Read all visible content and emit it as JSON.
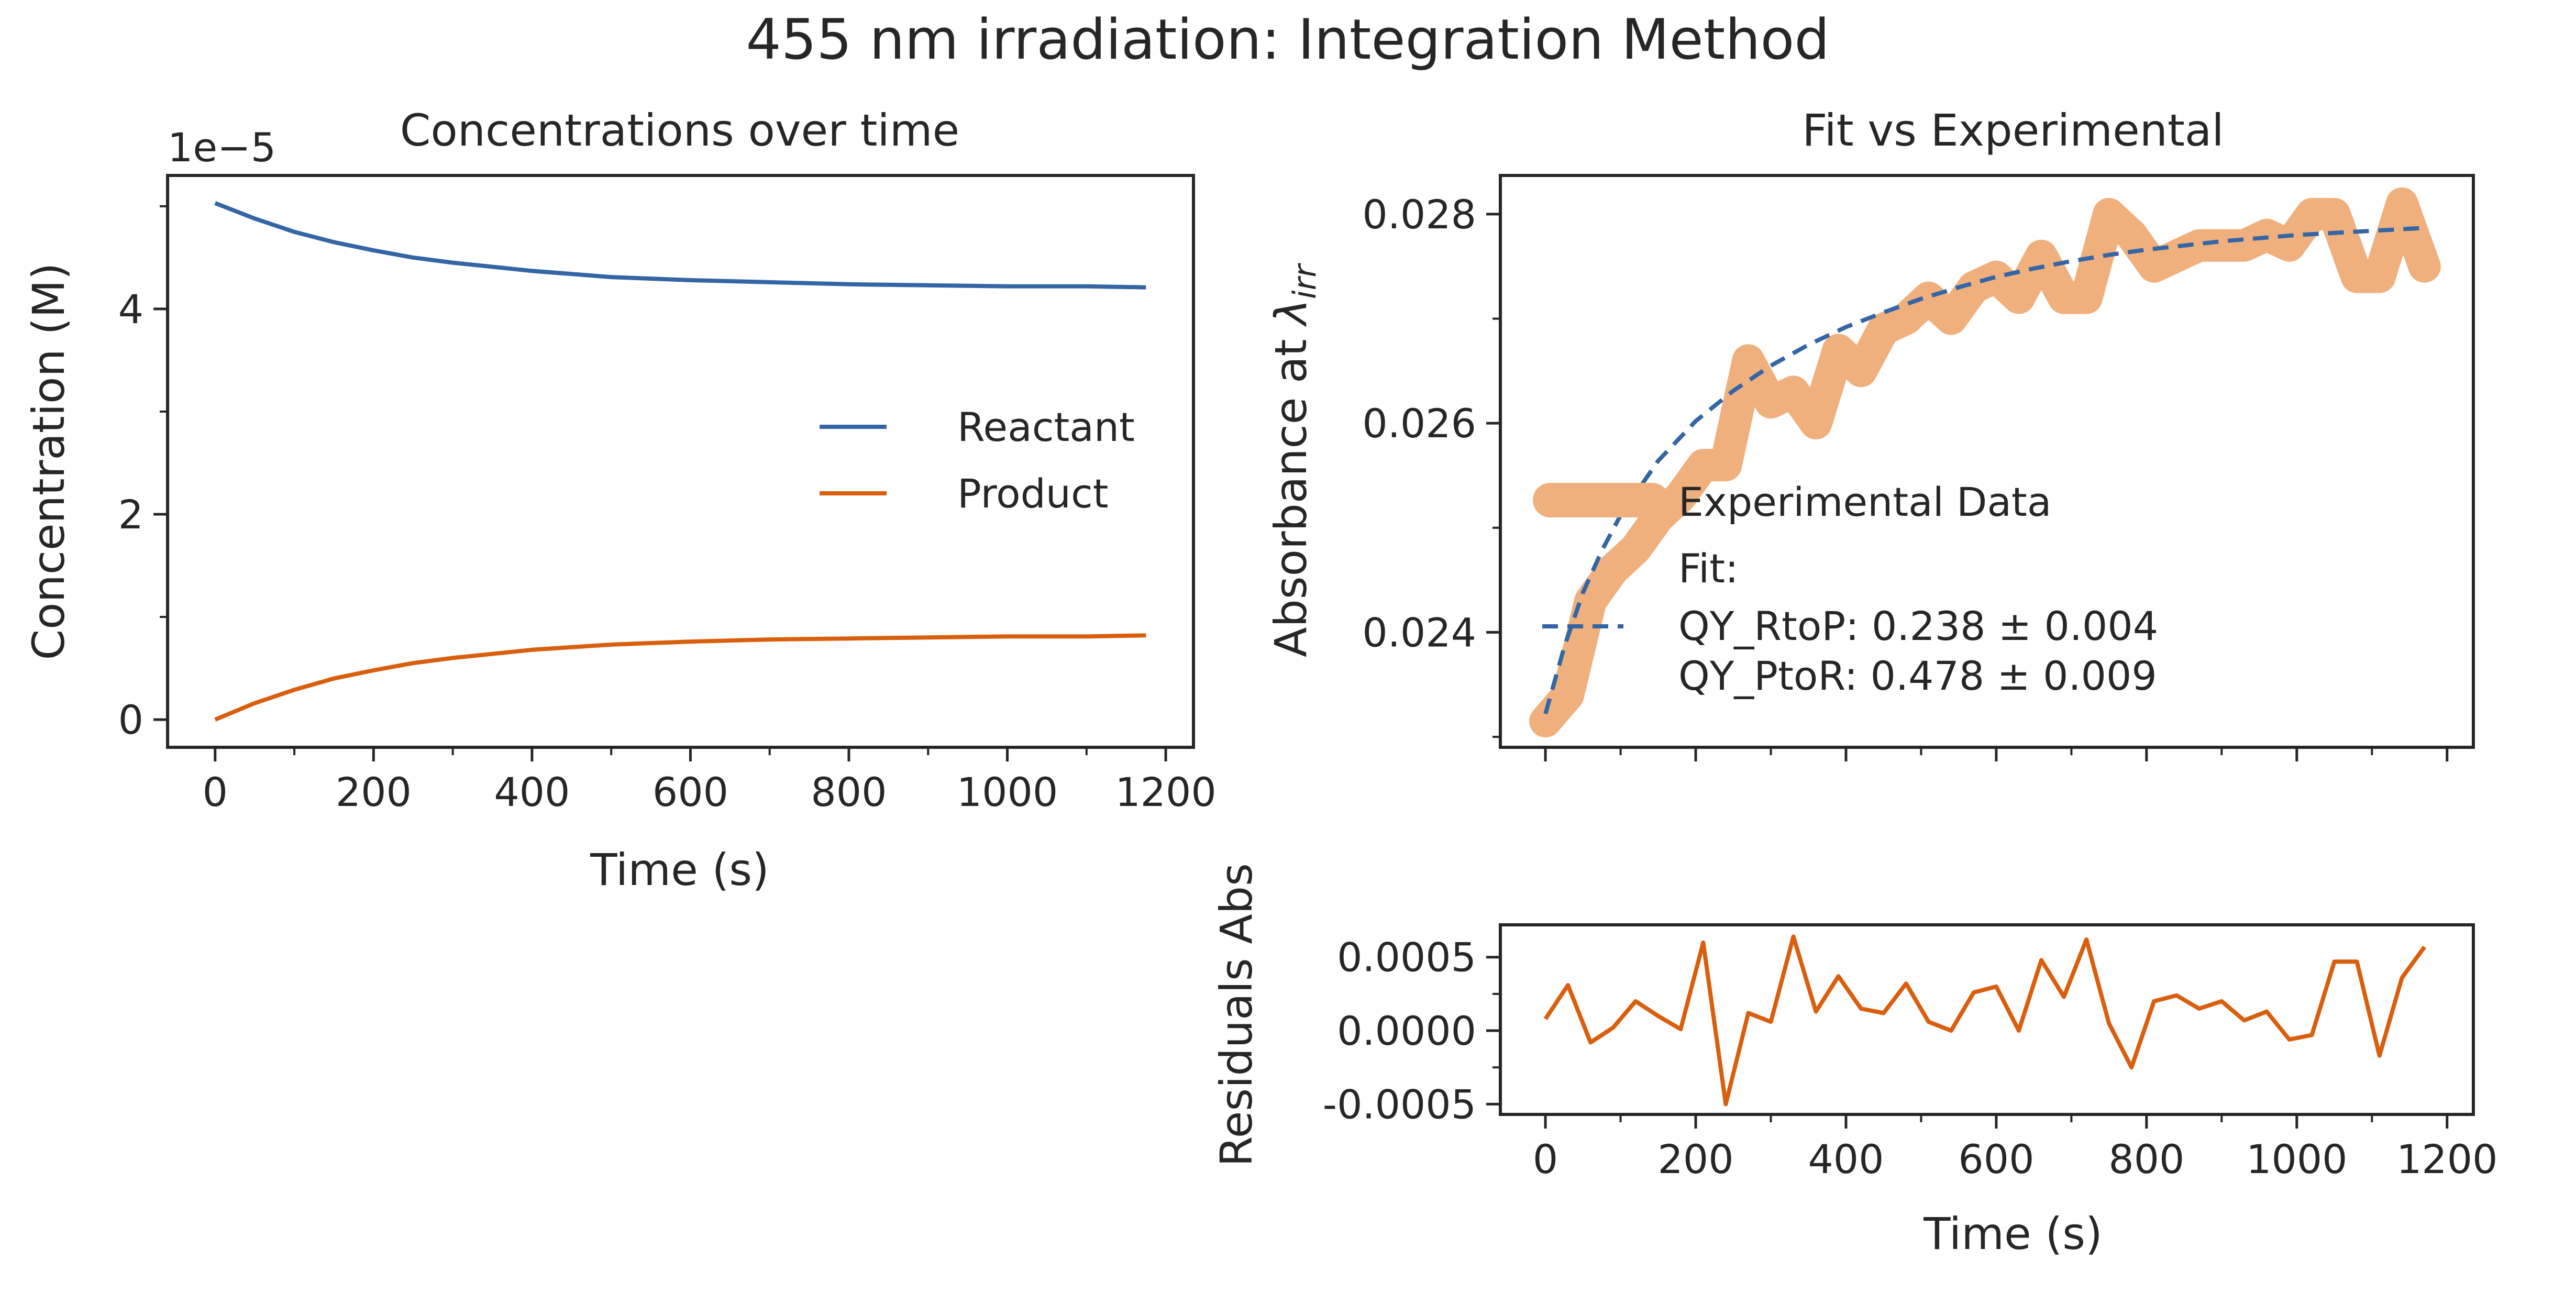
{
  "figure": {
    "suptitle": "455 nm irradiation: Integration Method"
  },
  "colors": {
    "reactant": "#3465a4",
    "product": "#d95f0e",
    "experimental": "#efb07e",
    "fit": "#3465a4",
    "residual": "#d95f0e",
    "axes": "#262626"
  },
  "chart_data": [
    {
      "type": "line",
      "title": "Concentrations over time",
      "xlabel": "Time (s)",
      "ylabel": "Concentration (M)",
      "offset_label": "1e−5",
      "xlim": [
        -60,
        1235
      ],
      "ylim": [
        -0.27,
        5.3
      ],
      "x_ticks": [
        0,
        200,
        400,
        600,
        800,
        1000,
        1200
      ],
      "x_tick_labels": [
        "0",
        "200",
        "400",
        "600",
        "800",
        "1000",
        "1200"
      ],
      "y_ticks": [
        0,
        2,
        4
      ],
      "y_tick_labels": [
        "0",
        "2",
        "4"
      ],
      "y_scale_factor": 1e-05,
      "legend_position": "center-right",
      "series": [
        {
          "name": "Reactant",
          "x": [
            0,
            50,
            100,
            150,
            200,
            250,
            300,
            400,
            500,
            600,
            700,
            800,
            900,
            1000,
            1100,
            1175
          ],
          "y": [
            5.03,
            4.88,
            4.75,
            4.65,
            4.57,
            4.5,
            4.45,
            4.37,
            4.31,
            4.28,
            4.26,
            4.24,
            4.23,
            4.22,
            4.22,
            4.21
          ]
        },
        {
          "name": "Product",
          "x": [
            0,
            50,
            100,
            150,
            200,
            250,
            300,
            400,
            500,
            600,
            700,
            800,
            900,
            1000,
            1100,
            1175
          ],
          "y": [
            0.0,
            0.16,
            0.29,
            0.4,
            0.48,
            0.55,
            0.6,
            0.68,
            0.73,
            0.76,
            0.78,
            0.79,
            0.8,
            0.81,
            0.81,
            0.82
          ]
        }
      ]
    },
    {
      "type": "line",
      "title": "Fit vs Experimental",
      "ylabel_prefix": "Absorbance at ",
      "ylabel_symbol": "λ",
      "ylabel_subscript": "irr",
      "xlim": [
        -60,
        1235
      ],
      "ylim": [
        0.0229,
        0.02837
      ],
      "y_ticks": [
        0.024,
        0.026,
        0.028
      ],
      "y_tick_labels": [
        "0.024",
        "0.026",
        "0.028"
      ],
      "legend_position": "lower-left",
      "legend": {
        "experimental_label": "Experimental Data",
        "fit_label_lines": [
          "Fit:",
          "QY_RtoP: 0.238 ± 0.004",
          "QY_PtoR: 0.478 ± 0.009"
        ]
      },
      "series": [
        {
          "name": "Experimental Data",
          "x": [
            0,
            30,
            60,
            90,
            120,
            150,
            180,
            210,
            240,
            270,
            300,
            330,
            360,
            390,
            420,
            450,
            480,
            510,
            540,
            570,
            600,
            630,
            660,
            690,
            720,
            750,
            780,
            810,
            840,
            870,
            900,
            930,
            960,
            990,
            1020,
            1050,
            1080,
            1110,
            1140,
            1170
          ],
          "y": [
            0.02315,
            0.0234,
            0.0243,
            0.0246,
            0.0248,
            0.0251,
            0.0253,
            0.0256,
            0.0256,
            0.0266,
            0.0262,
            0.0263,
            0.026,
            0.0267,
            0.0265,
            0.0269,
            0.027,
            0.0272,
            0.027,
            0.0273,
            0.0274,
            0.0272,
            0.0276,
            0.0272,
            0.0272,
            0.028,
            0.0278,
            0.0275,
            0.0276,
            0.0277,
            0.0277,
            0.0277,
            0.0278,
            0.0277,
            0.028,
            0.028,
            0.0274,
            0.0274,
            0.0281,
            0.0275
          ]
        },
        {
          "name": "Fit",
          "x": [
            0,
            25,
            50,
            75,
            100,
            150,
            200,
            250,
            300,
            350,
            400,
            450,
            500,
            550,
            600,
            650,
            700,
            750,
            800,
            850,
            900,
            950,
            1000,
            1050,
            1100,
            1150,
            1175
          ],
          "y": [
            0.02322,
            0.02386,
            0.02438,
            0.02478,
            0.02512,
            0.02564,
            0.02602,
            0.02631,
            0.02655,
            0.02675,
            0.02692,
            0.02706,
            0.02719,
            0.0273,
            0.0274,
            0.02748,
            0.02755,
            0.02761,
            0.02766,
            0.0277,
            0.02774,
            0.02777,
            0.0278,
            0.02782,
            0.02784,
            0.02786,
            0.02787
          ]
        }
      ]
    },
    {
      "type": "line",
      "title": "",
      "xlabel": "Time (s)",
      "ylabel": "Residuals Abs",
      "xlim": [
        -60,
        1235
      ],
      "ylim": [
        -0.00057,
        0.00072
      ],
      "x_ticks": [
        0,
        200,
        400,
        600,
        800,
        1000,
        1200
      ],
      "x_tick_labels": [
        "0",
        "200",
        "400",
        "600",
        "800",
        "1000",
        "1200"
      ],
      "y_ticks": [
        -0.0005,
        0.0,
        0.0005
      ],
      "y_tick_labels": [
        "-0.0005",
        "0.0000",
        "0.0005"
      ],
      "series": [
        {
          "name": "Residuals",
          "x": [
            0,
            30,
            60,
            90,
            120,
            150,
            180,
            210,
            240,
            270,
            300,
            330,
            360,
            390,
            420,
            450,
            480,
            510,
            540,
            570,
            600,
            630,
            660,
            690,
            720,
            750,
            780,
            810,
            840,
            870,
            900,
            930,
            960,
            990,
            1020,
            1050,
            1080,
            1110,
            1140,
            1170
          ],
          "y": [
            8e-05,
            0.00031,
            -8e-05,
            2e-05,
            0.0002,
            0.0001,
            1e-05,
            0.0006,
            -0.0005,
            0.00012,
            6e-05,
            0.00064,
            0.00013,
            0.00037,
            0.00015,
            0.00012,
            0.00032,
            6e-05,
            0.0,
            0.00026,
            0.0003,
            0.0,
            0.00048,
            0.00023,
            0.00062,
            5e-05,
            -0.00025,
            0.0002,
            0.00024,
            0.00015,
            0.0002,
            7e-05,
            0.00013,
            -6e-05,
            -3e-05,
            0.00047,
            0.00047,
            -0.00017,
            0.00036,
            0.00057
          ]
        }
      ]
    }
  ]
}
